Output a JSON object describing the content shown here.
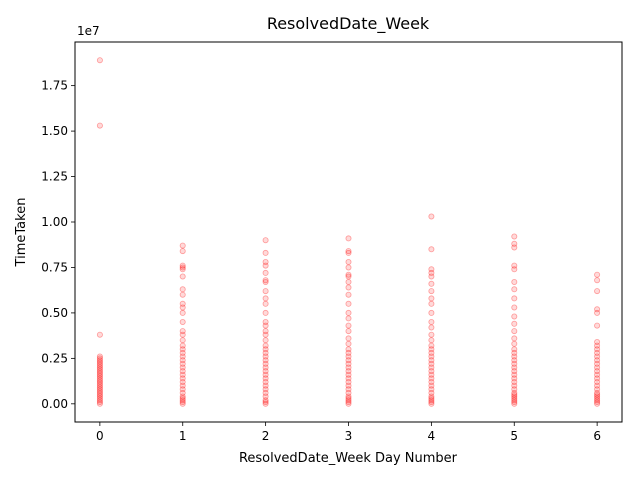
{
  "chart_data": {
    "type": "scatter",
    "title": "ResolvedDate_Week",
    "xlabel": "ResolvedDate_Week Day Number",
    "ylabel": "TimeTaken",
    "y_multiplier_label": "1e7",
    "xlim": [
      -0.3,
      6.3
    ],
    "ylim": [
      -0.1,
      1.99
    ],
    "x_ticks": [
      0,
      1,
      2,
      3,
      4,
      5,
      6
    ],
    "y_ticks": [
      0.0,
      0.25,
      0.5,
      0.75,
      1.0,
      1.25,
      1.5,
      1.75
    ],
    "y_tick_labels": [
      "0.00",
      "0.25",
      "0.50",
      "0.75",
      "1.00",
      "1.25",
      "1.50",
      "1.75"
    ],
    "grid": false,
    "point_color": "#ff0000",
    "series": [
      {
        "x": [
          0,
          0,
          0,
          0,
          0,
          0,
          0,
          0,
          0,
          0,
          0,
          0,
          0,
          0,
          0,
          0,
          0,
          0,
          0,
          0,
          0,
          0,
          0,
          0,
          0,
          0,
          0,
          0,
          0,
          0
        ],
        "y": [
          0.0,
          0.02,
          0.04,
          0.06,
          0.08,
          0.1,
          0.12,
          0.14,
          0.16,
          0.18,
          0.2,
          0.22,
          0.24,
          0.26,
          0.38,
          1.53,
          1.89,
          0.01,
          0.03,
          0.05,
          0.07,
          0.09,
          0.11,
          0.13,
          0.15,
          0.17,
          0.19,
          0.21,
          0.23,
          0.25
        ]
      },
      {
        "x": [
          1,
          1,
          1,
          1,
          1,
          1,
          1,
          1,
          1,
          1,
          1,
          1,
          1,
          1,
          1,
          1,
          1,
          1,
          1,
          1,
          1,
          1,
          1,
          1,
          1,
          1,
          1,
          1,
          1,
          1,
          1,
          1,
          1,
          1
        ],
        "y": [
          0.0,
          0.02,
          0.04,
          0.06,
          0.08,
          0.1,
          0.12,
          0.14,
          0.16,
          0.18,
          0.2,
          0.22,
          0.24,
          0.26,
          0.28,
          0.3,
          0.32,
          0.35,
          0.38,
          0.4,
          0.45,
          0.5,
          0.53,
          0.55,
          0.6,
          0.63,
          0.7,
          0.74,
          0.75,
          0.76,
          0.84,
          0.87,
          0.01,
          0.03
        ]
      },
      {
        "x": [
          2,
          2,
          2,
          2,
          2,
          2,
          2,
          2,
          2,
          2,
          2,
          2,
          2,
          2,
          2,
          2,
          2,
          2,
          2,
          2,
          2,
          2,
          2,
          2,
          2,
          2,
          2,
          2,
          2,
          2,
          2,
          2,
          2,
          2
        ],
        "y": [
          0.0,
          0.02,
          0.04,
          0.06,
          0.08,
          0.1,
          0.12,
          0.14,
          0.16,
          0.18,
          0.2,
          0.22,
          0.24,
          0.26,
          0.28,
          0.3,
          0.32,
          0.35,
          0.38,
          0.4,
          0.43,
          0.45,
          0.5,
          0.55,
          0.58,
          0.62,
          0.67,
          0.68,
          0.72,
          0.76,
          0.78,
          0.83,
          0.9,
          0.01
        ]
      },
      {
        "x": [
          3,
          3,
          3,
          3,
          3,
          3,
          3,
          3,
          3,
          3,
          3,
          3,
          3,
          3,
          3,
          3,
          3,
          3,
          3,
          3,
          3,
          3,
          3,
          3,
          3,
          3,
          3,
          3,
          3,
          3,
          3,
          3,
          3,
          3,
          3
        ],
        "y": [
          0.0,
          0.02,
          0.04,
          0.06,
          0.08,
          0.1,
          0.12,
          0.14,
          0.16,
          0.18,
          0.2,
          0.22,
          0.24,
          0.26,
          0.28,
          0.3,
          0.33,
          0.36,
          0.4,
          0.43,
          0.47,
          0.5,
          0.55,
          0.6,
          0.64,
          0.67,
          0.7,
          0.71,
          0.75,
          0.78,
          0.83,
          0.84,
          0.91,
          0.01,
          0.03
        ]
      },
      {
        "x": [
          4,
          4,
          4,
          4,
          4,
          4,
          4,
          4,
          4,
          4,
          4,
          4,
          4,
          4,
          4,
          4,
          4,
          4,
          4,
          4,
          4,
          4,
          4,
          4,
          4,
          4,
          4,
          4,
          4,
          4,
          4,
          4,
          4
        ],
        "y": [
          0.0,
          0.02,
          0.04,
          0.06,
          0.08,
          0.1,
          0.12,
          0.14,
          0.16,
          0.18,
          0.2,
          0.22,
          0.24,
          0.26,
          0.28,
          0.3,
          0.32,
          0.35,
          0.38,
          0.42,
          0.45,
          0.5,
          0.55,
          0.58,
          0.62,
          0.66,
          0.7,
          0.72,
          0.74,
          0.85,
          1.03,
          0.01,
          0.03
        ]
      },
      {
        "x": [
          5,
          5,
          5,
          5,
          5,
          5,
          5,
          5,
          5,
          5,
          5,
          5,
          5,
          5,
          5,
          5,
          5,
          5,
          5,
          5,
          5,
          5,
          5,
          5,
          5,
          5,
          5,
          5,
          5,
          5,
          5,
          5,
          5
        ],
        "y": [
          0.0,
          0.02,
          0.04,
          0.06,
          0.08,
          0.1,
          0.12,
          0.14,
          0.16,
          0.18,
          0.2,
          0.22,
          0.24,
          0.26,
          0.28,
          0.3,
          0.33,
          0.36,
          0.4,
          0.44,
          0.48,
          0.53,
          0.58,
          0.63,
          0.67,
          0.74,
          0.76,
          0.86,
          0.88,
          0.92,
          0.01,
          0.03,
          0.05
        ]
      },
      {
        "x": [
          6,
          6,
          6,
          6,
          6,
          6,
          6,
          6,
          6,
          6,
          6,
          6,
          6,
          6,
          6,
          6,
          6,
          6,
          6,
          6,
          6,
          6,
          6,
          6,
          6,
          6,
          6
        ],
        "y": [
          0.0,
          0.02,
          0.04,
          0.06,
          0.08,
          0.1,
          0.12,
          0.14,
          0.16,
          0.18,
          0.2,
          0.22,
          0.24,
          0.26,
          0.28,
          0.3,
          0.32,
          0.34,
          0.43,
          0.5,
          0.52,
          0.62,
          0.68,
          0.71,
          0.01,
          0.03,
          0.05
        ]
      }
    ]
  }
}
